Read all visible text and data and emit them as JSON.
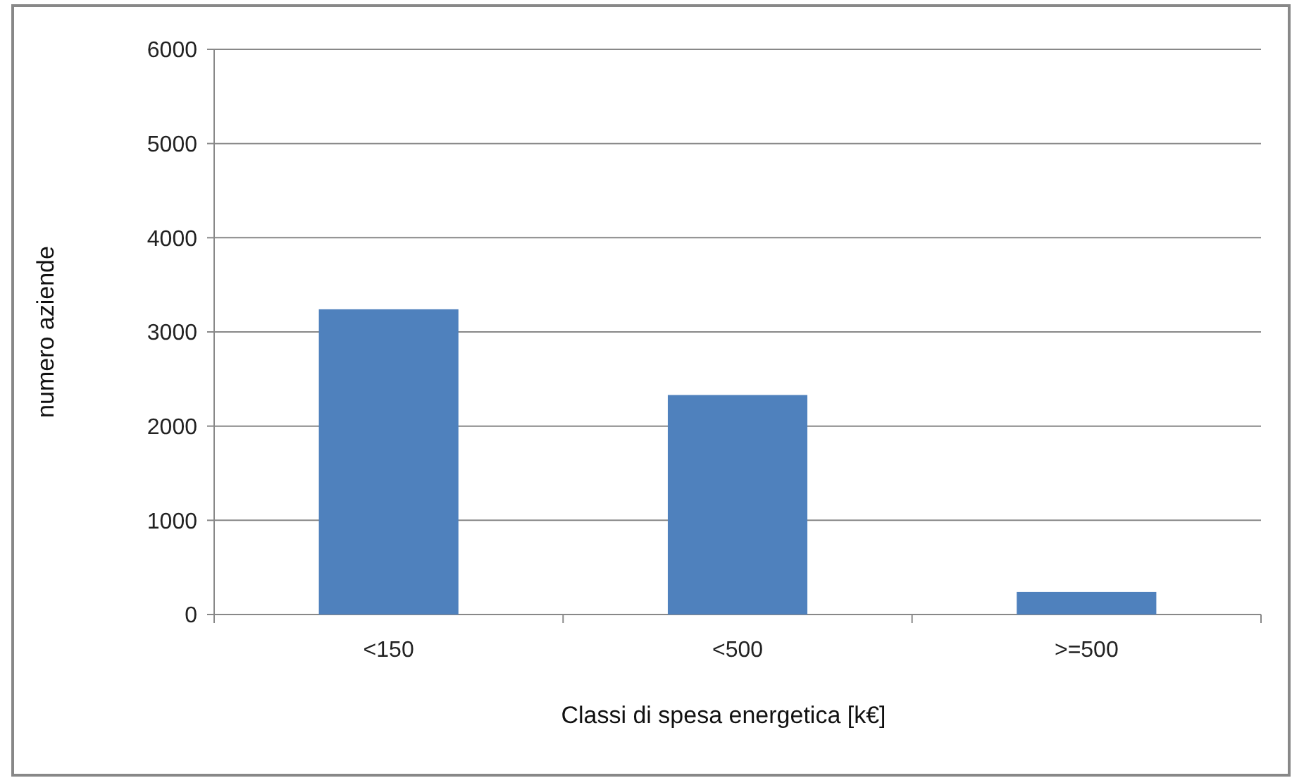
{
  "chart_data": {
    "type": "bar",
    "xlabel": "Classi di spesa energetica [k€]",
    "ylabel": "numero aziende",
    "categories": [
      "<150",
      "<500",
      ">=500"
    ],
    "values": [
      3240,
      2330,
      240
    ],
    "color": "#4f81bd",
    "ylim": [
      0,
      6000
    ],
    "yticks": [
      0,
      1000,
      2000,
      3000,
      4000,
      5000,
      6000
    ],
    "grid": "y"
  }
}
